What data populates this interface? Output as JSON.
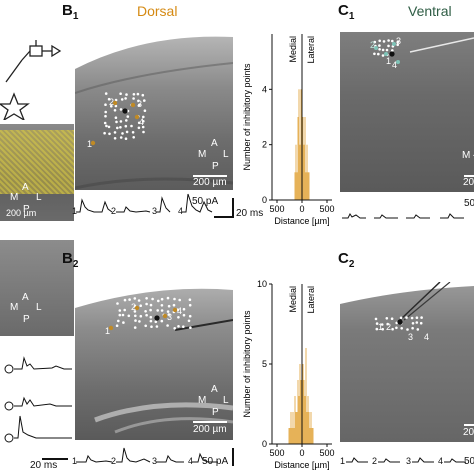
{
  "colors": {
    "dorsal": "#d58a13",
    "ventral": "#2f5d45",
    "hist": "#e0a030",
    "overlay": "#d8c840"
  },
  "panels": {
    "b1": {
      "letter": "B",
      "sub": "1",
      "region": "Dorsal"
    },
    "b2": {
      "letter": "B",
      "sub": "2"
    },
    "c1": {
      "letter": "C",
      "sub": "1",
      "region": "Ventral"
    },
    "c2": {
      "letter": "C",
      "sub": "2"
    }
  },
  "compass": {
    "a": "A",
    "p": "P",
    "m": "M",
    "l": "L"
  },
  "scalebars": {
    "b1_image": "200 µm",
    "b2_image": "200 µm",
    "left_image": "200 µm",
    "c1_image": "20",
    "c2_image": "20",
    "b1_traces_amp": "50 pA",
    "b1_traces_time": "20 ms",
    "b2_traces_amp": "50 pA",
    "left_traces_time": "20 ms",
    "c1_traces_amp": "50",
    "c2_traces_amp": "50",
    "c1_left_m": "M –"
  },
  "trace_numbers": {
    "b1": [
      "1",
      "2",
      "3",
      "4"
    ],
    "b2": [
      "1",
      "2",
      "3",
      "4"
    ],
    "c2": [
      "1",
      "2",
      "3",
      "4"
    ]
  },
  "map_labels": {
    "b1": [
      "1",
      "2",
      "3",
      "4"
    ],
    "b2": [
      "1",
      "2",
      "3",
      "4"
    ],
    "c1": [
      "2",
      "3",
      "1",
      "4"
    ],
    "c2": [
      "1",
      "2",
      "3",
      "4"
    ]
  },
  "chart_data": [
    {
      "type": "bar",
      "id": "hist-b1",
      "xlabel": "Distance [µm]",
      "ylabel": "Number of inhibitory points",
      "annotations": [
        "Medial",
        "Lateral"
      ],
      "x": [
        -140,
        -120,
        -100,
        -80,
        -60,
        -40,
        -20,
        0,
        20,
        40,
        60,
        80,
        100,
        120,
        140
      ],
      "values": [
        1,
        2,
        1,
        3,
        4,
        2,
        4,
        5,
        3,
        2,
        3,
        1,
        2,
        1,
        1
      ],
      "xlim": [
        -600,
        600
      ],
      "ylim": [
        0,
        6
      ],
      "xticks": [
        500,
        0,
        500
      ],
      "yticks": [
        0,
        2,
        4
      ]
    },
    {
      "type": "bar",
      "id": "hist-b2",
      "xlabel": "Distance [µm]",
      "ylabel": "Number of inhibitory points",
      "annotations": [
        "Medial",
        "Lateral"
      ],
      "x": [
        -260,
        -240,
        -220,
        -200,
        -180,
        -160,
        -140,
        -120,
        -100,
        -80,
        -60,
        -40,
        -20,
        0,
        20,
        40,
        60,
        80,
        100,
        120,
        140,
        160,
        180,
        200,
        220
      ],
      "values": [
        1,
        1,
        2,
        1,
        2,
        1,
        3,
        2,
        2,
        4,
        3,
        5,
        4,
        6,
        5,
        4,
        3,
        6,
        2,
        3,
        2,
        1,
        2,
        1,
        1
      ],
      "xlim": [
        -600,
        600
      ],
      "ylim": [
        0,
        10
      ],
      "xticks": [
        500,
        0,
        500
      ],
      "yticks": [
        0,
        5,
        10
      ]
    }
  ]
}
